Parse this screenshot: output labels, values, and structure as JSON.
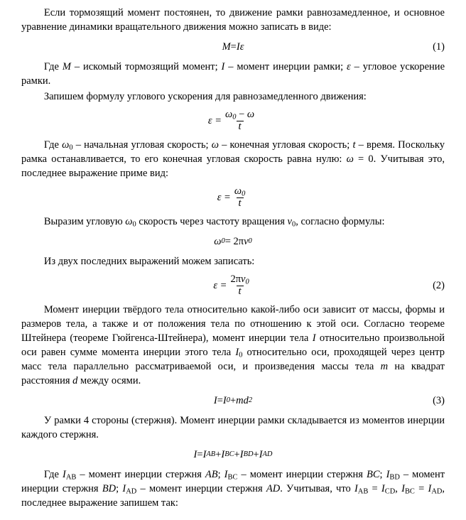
{
  "p1": "Если тормозящий момент постоянен, то движение рамки равнозамедленное, и основное уравнение динамики вращательного движения можно записать в виде:",
  "eq1_lhs": "M",
  "eq1_eq": " = ",
  "eq1_rhs": "Iε",
  "eq1_num": "(1)",
  "p2a": "Где ",
  "p2_M": "M",
  "p2b": " – искомый тормозящий момент; ",
  "p2_I": "I",
  "p2c": " – момент инерции рамки; ",
  "p2_eps": "ε",
  "p2d": " – угловое ускорение рамки.",
  "p3": "Запишем формулу углового ускорения для равнозамедленного движения:",
  "eq2_l": "ε = ",
  "eq2_num_a": "ω",
  "eq2_num_a_sub": "0",
  "eq2_num_minus": " − ",
  "eq2_num_b": "ω",
  "eq2_den": "t",
  "p4a": "Где ",
  "p4_w0": "ω",
  "p4_w0s": "0",
  "p4b": " – начальная угловая скорость; ",
  "p4_w": "ω",
  "p4c": " – конечная угловая скорость; ",
  "p4_t": "t",
  "p4d": " – время. Поскольку рамка останавливается, то его конечная угловая скорость равна нулю: ",
  "p4_w2": "ω",
  "p4_eq0": " = 0",
  "p4e": ". Учитывая это, последнее выражение приме вид:",
  "eq3_l": "ε = ",
  "eq3_num": "ω",
  "eq3_num_sub": "0",
  "eq3_den": "t",
  "p5a": "Выразим угловую ",
  "p5_w0": "ω",
  "p5_w0s": "0",
  "p5b": " скорость через частоту вращения ",
  "p5_v0": "ν",
  "p5_v0s": "0",
  "p5c": ", согласно формулы:",
  "eq4_w": "ω",
  "eq4_ws": "0",
  "eq4_mid": " = 2π",
  "eq4_v": "ν",
  "eq4_vs": "0",
  "p6": "Из двух последних выражений можем записать:",
  "eq5_l": "ε = ",
  "eq5_num_a": "2π",
  "eq5_num_v": "ν",
  "eq5_num_vs": "0",
  "eq5_den": "t",
  "eq5_numlabel": "(2)",
  "p7a": "Момент инерции твёрдого тела относительно какой-либо оси зависит от массы, формы и размеров тела, а также и от положения тела по отношению к этой оси. Согласно теореме Штейнера (теореме Гюйгенса-Штейнера), момент инерции тела ",
  "p7_I": "I",
  "p7b": " относительно произвольной оси равен сумме момента инерции этого тела ",
  "p7_I0": "I",
  "p7_I0s": "0",
  "p7c": " относительно оси, проходящей через центр масс тела параллельно рассматриваемой оси, и произведения массы тела ",
  "p7_m": "m",
  "p7d": " на квадрат расстояния ",
  "p7_dv": "d",
  "p7e": "   между осями.",
  "eq6_I": "I",
  "eq6_eq": " = ",
  "eq6_I0": "I",
  "eq6_I0s": "0",
  "eq6_plus": " + ",
  "eq6_m": "m",
  "eq6_d": "d",
  "eq6_sq": "2",
  "eq6_num": "(3)",
  "p8": "У рамки 4 стороны (стержня). Момент инерции рамки складывается из моментов инерции каждого стержня.",
  "eq7_I": "I",
  "eq7_eq": " = ",
  "eq7_I1": "I",
  "eq7_I1s": "AB",
  "eq7_p1": " + ",
  "eq7_I2": "I",
  "eq7_I2s": "BC",
  "eq7_p2": " + ",
  "eq7_I3": "I",
  "eq7_I3s": "BD",
  "eq7_p3": " + ",
  "eq7_I4": "I",
  "eq7_I4s": "AD",
  "p9a": "Где ",
  "p9_IAB": "I",
  "p9_IABs": "AB",
  "p9b": " – момент инерции стержня ",
  "p9_AB": "AB",
  "p9c": "; ",
  "p9_IBC": "I",
  "p9_IBCs": "BC",
  "p9d": " – момент инерции стержня ",
  "p9_BC": "BC",
  "p9e": "; ",
  "p9_IBD": "I",
  "p9_IBDs": "BD",
  "p9f": " – момент инерции стержня ",
  "p9_BD": "BD",
  "p9g": "; ",
  "p9_IAD": "I",
  "p9_IADs": "AD",
  "p9h": " – момент инерции стержня ",
  "p9_AD": "AD",
  "p9i": ". Учитывая, что ",
  "p9_IAB2": "I",
  "p9_IAB2s": "AB",
  "p9_eq1": " = ",
  "p9_ICD": "I",
  "p9_ICDs": "CD",
  "p9_comma": ", ",
  "p9_IBC2": "I",
  "p9_IBC2s": "BC",
  "p9_eq2": " = ",
  "p9_IAD2": "I",
  "p9_IAD2s": "AD",
  "p9j": ", последнее выражение запишем так:"
}
